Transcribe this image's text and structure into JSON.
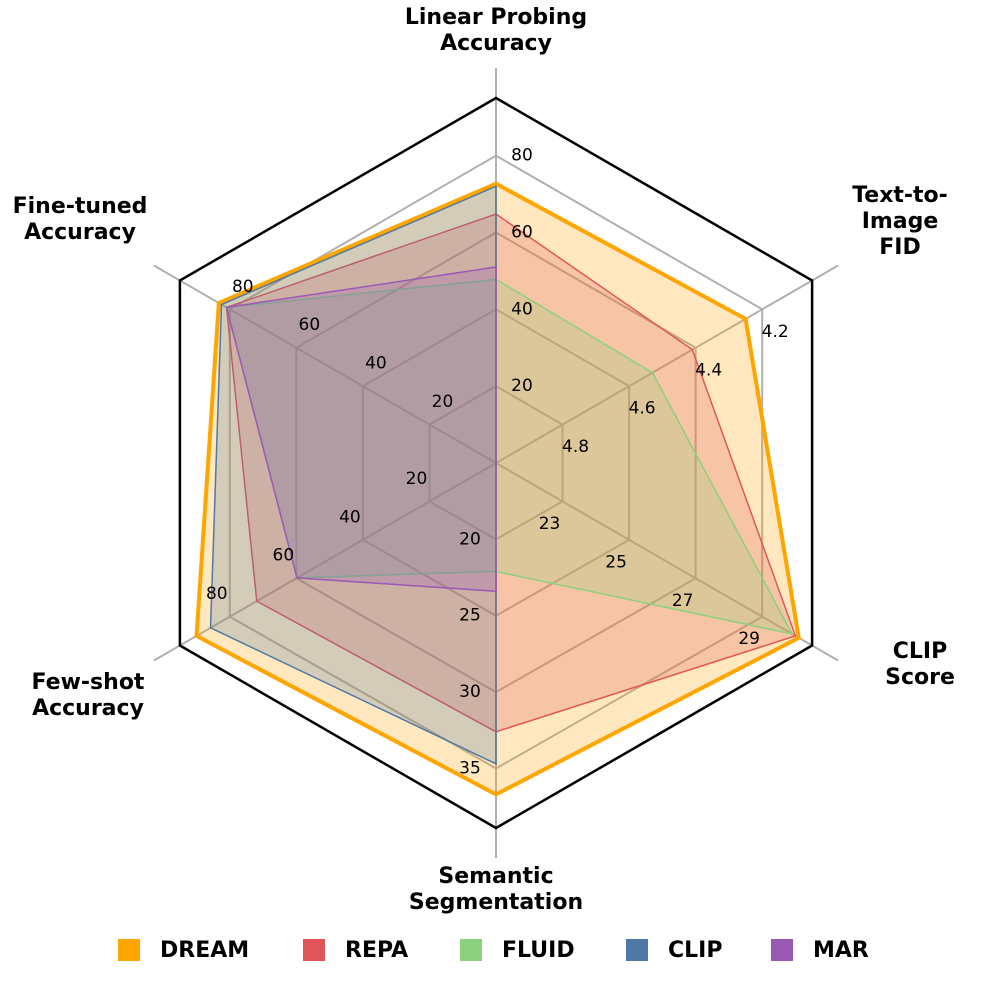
{
  "chart_data": {
    "type": "radar",
    "categories": [
      "Linear Probing\nAccuracy",
      "Text-to-\nImage FID",
      "CLIP Score",
      "Semantic\nSegmentation",
      "Few-shot\nAccuracy",
      "Fine-tuned\nAccuracy"
    ],
    "rlims": [
      [
        0,
        95
      ],
      [
        5.0,
        4.05
      ],
      [
        21,
        30.5
      ],
      [
        15,
        38.9
      ],
      [
        0,
        95
      ],
      [
        0,
        95
      ]
    ],
    "rticks": [
      [
        20,
        40,
        60,
        80
      ],
      [
        4.8,
        4.6,
        4.4,
        4.2
      ],
      [
        23,
        25,
        27,
        29
      ],
      [
        20,
        25,
        30,
        35
      ],
      [
        20,
        40,
        60,
        80
      ],
      [
        20,
        40,
        60,
        80
      ]
    ],
    "series": [
      {
        "name": "DREAM",
        "color": "#ffa500",
        "values": [
          72.7,
          4.25,
          30.1,
          36.7,
          90,
          83.3
        ]
      },
      {
        "name": "REPA",
        "color": "#e15759",
        "values": [
          64.8,
          4.41,
          30.0,
          32.6,
          71.9,
          81
        ]
      },
      {
        "name": "FLUID",
        "color": "#8cd17d",
        "values": [
          47.8,
          4.53,
          29.9,
          22.1,
          59.8,
          81
        ]
      },
      {
        "name": "CLIP",
        "color": "#4e79a7",
        "values": [
          72,
          null,
          null,
          34.7,
          85.8,
          82.5
        ]
      },
      {
        "name": "MAR",
        "color": "#9b59b6",
        "values": [
          51,
          null,
          null,
          23.4,
          59.8,
          81
        ]
      }
    ],
    "grid": true
  }
}
